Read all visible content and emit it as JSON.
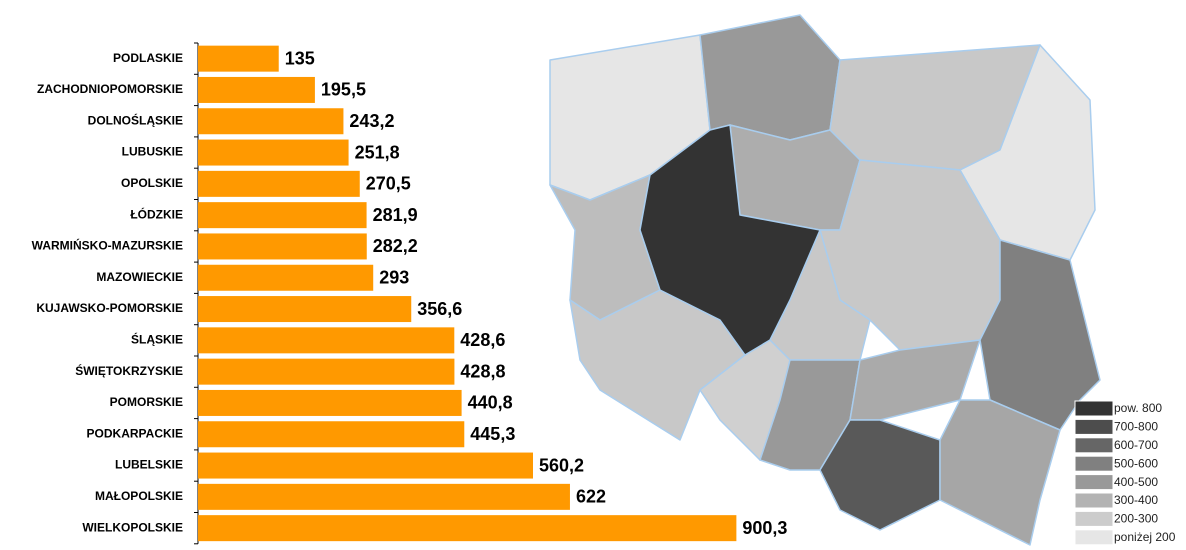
{
  "chart_data": {
    "type": "bar",
    "orientation": "horizontal",
    "categories": [
      "PODLASKIE",
      "ZACHODNIOPOMORSKIE",
      "DOLNOŚLĄSKIE",
      "LUBUSKIE",
      "OPOLSKIE",
      "ŁÓDZKIE",
      "WARMIŃSKO-MAZURSKIE",
      "MAZOWIECKIE",
      "KUJAWSKO-POMORSKIE",
      "ŚLĄSKIE",
      "ŚWIĘTOKRZYSKIE",
      "POMORSKIE",
      "PODKARPACKIE",
      "LUBELSKIE",
      "MAŁOPOLSKIE",
      "WIELKOPOLSKIE"
    ],
    "values": [
      135,
      195.5,
      243.2,
      251.8,
      270.5,
      281.9,
      282.2,
      293,
      356.6,
      428.6,
      428.8,
      440.8,
      445.3,
      560.2,
      622,
      900.3
    ],
    "value_labels": [
      "135",
      "195,5",
      "243,2",
      "251,8",
      "270,5",
      "281,9",
      "282,2",
      "293",
      "356,6",
      "428,6",
      "428,8",
      "440,8",
      "445,3",
      "560,2",
      "622",
      "900,3"
    ],
    "color": "#ff9900",
    "xlim": [
      0,
      1000
    ],
    "map_legend": [
      {
        "label": "pow. 800",
        "color": "#333333"
      },
      {
        "label": "700-800",
        "color": "#4d4d4d"
      },
      {
        "label": "600-700",
        "color": "#666666"
      },
      {
        "label": "500-600",
        "color": "#808080"
      },
      {
        "label": "400-500",
        "color": "#999999"
      },
      {
        "label": "300-400",
        "color": "#b3b3b3"
      },
      {
        "label": "200-300",
        "color": "#cccccc"
      },
      {
        "label": "poniżej 200",
        "color": "#e6e6e6"
      }
    ]
  }
}
